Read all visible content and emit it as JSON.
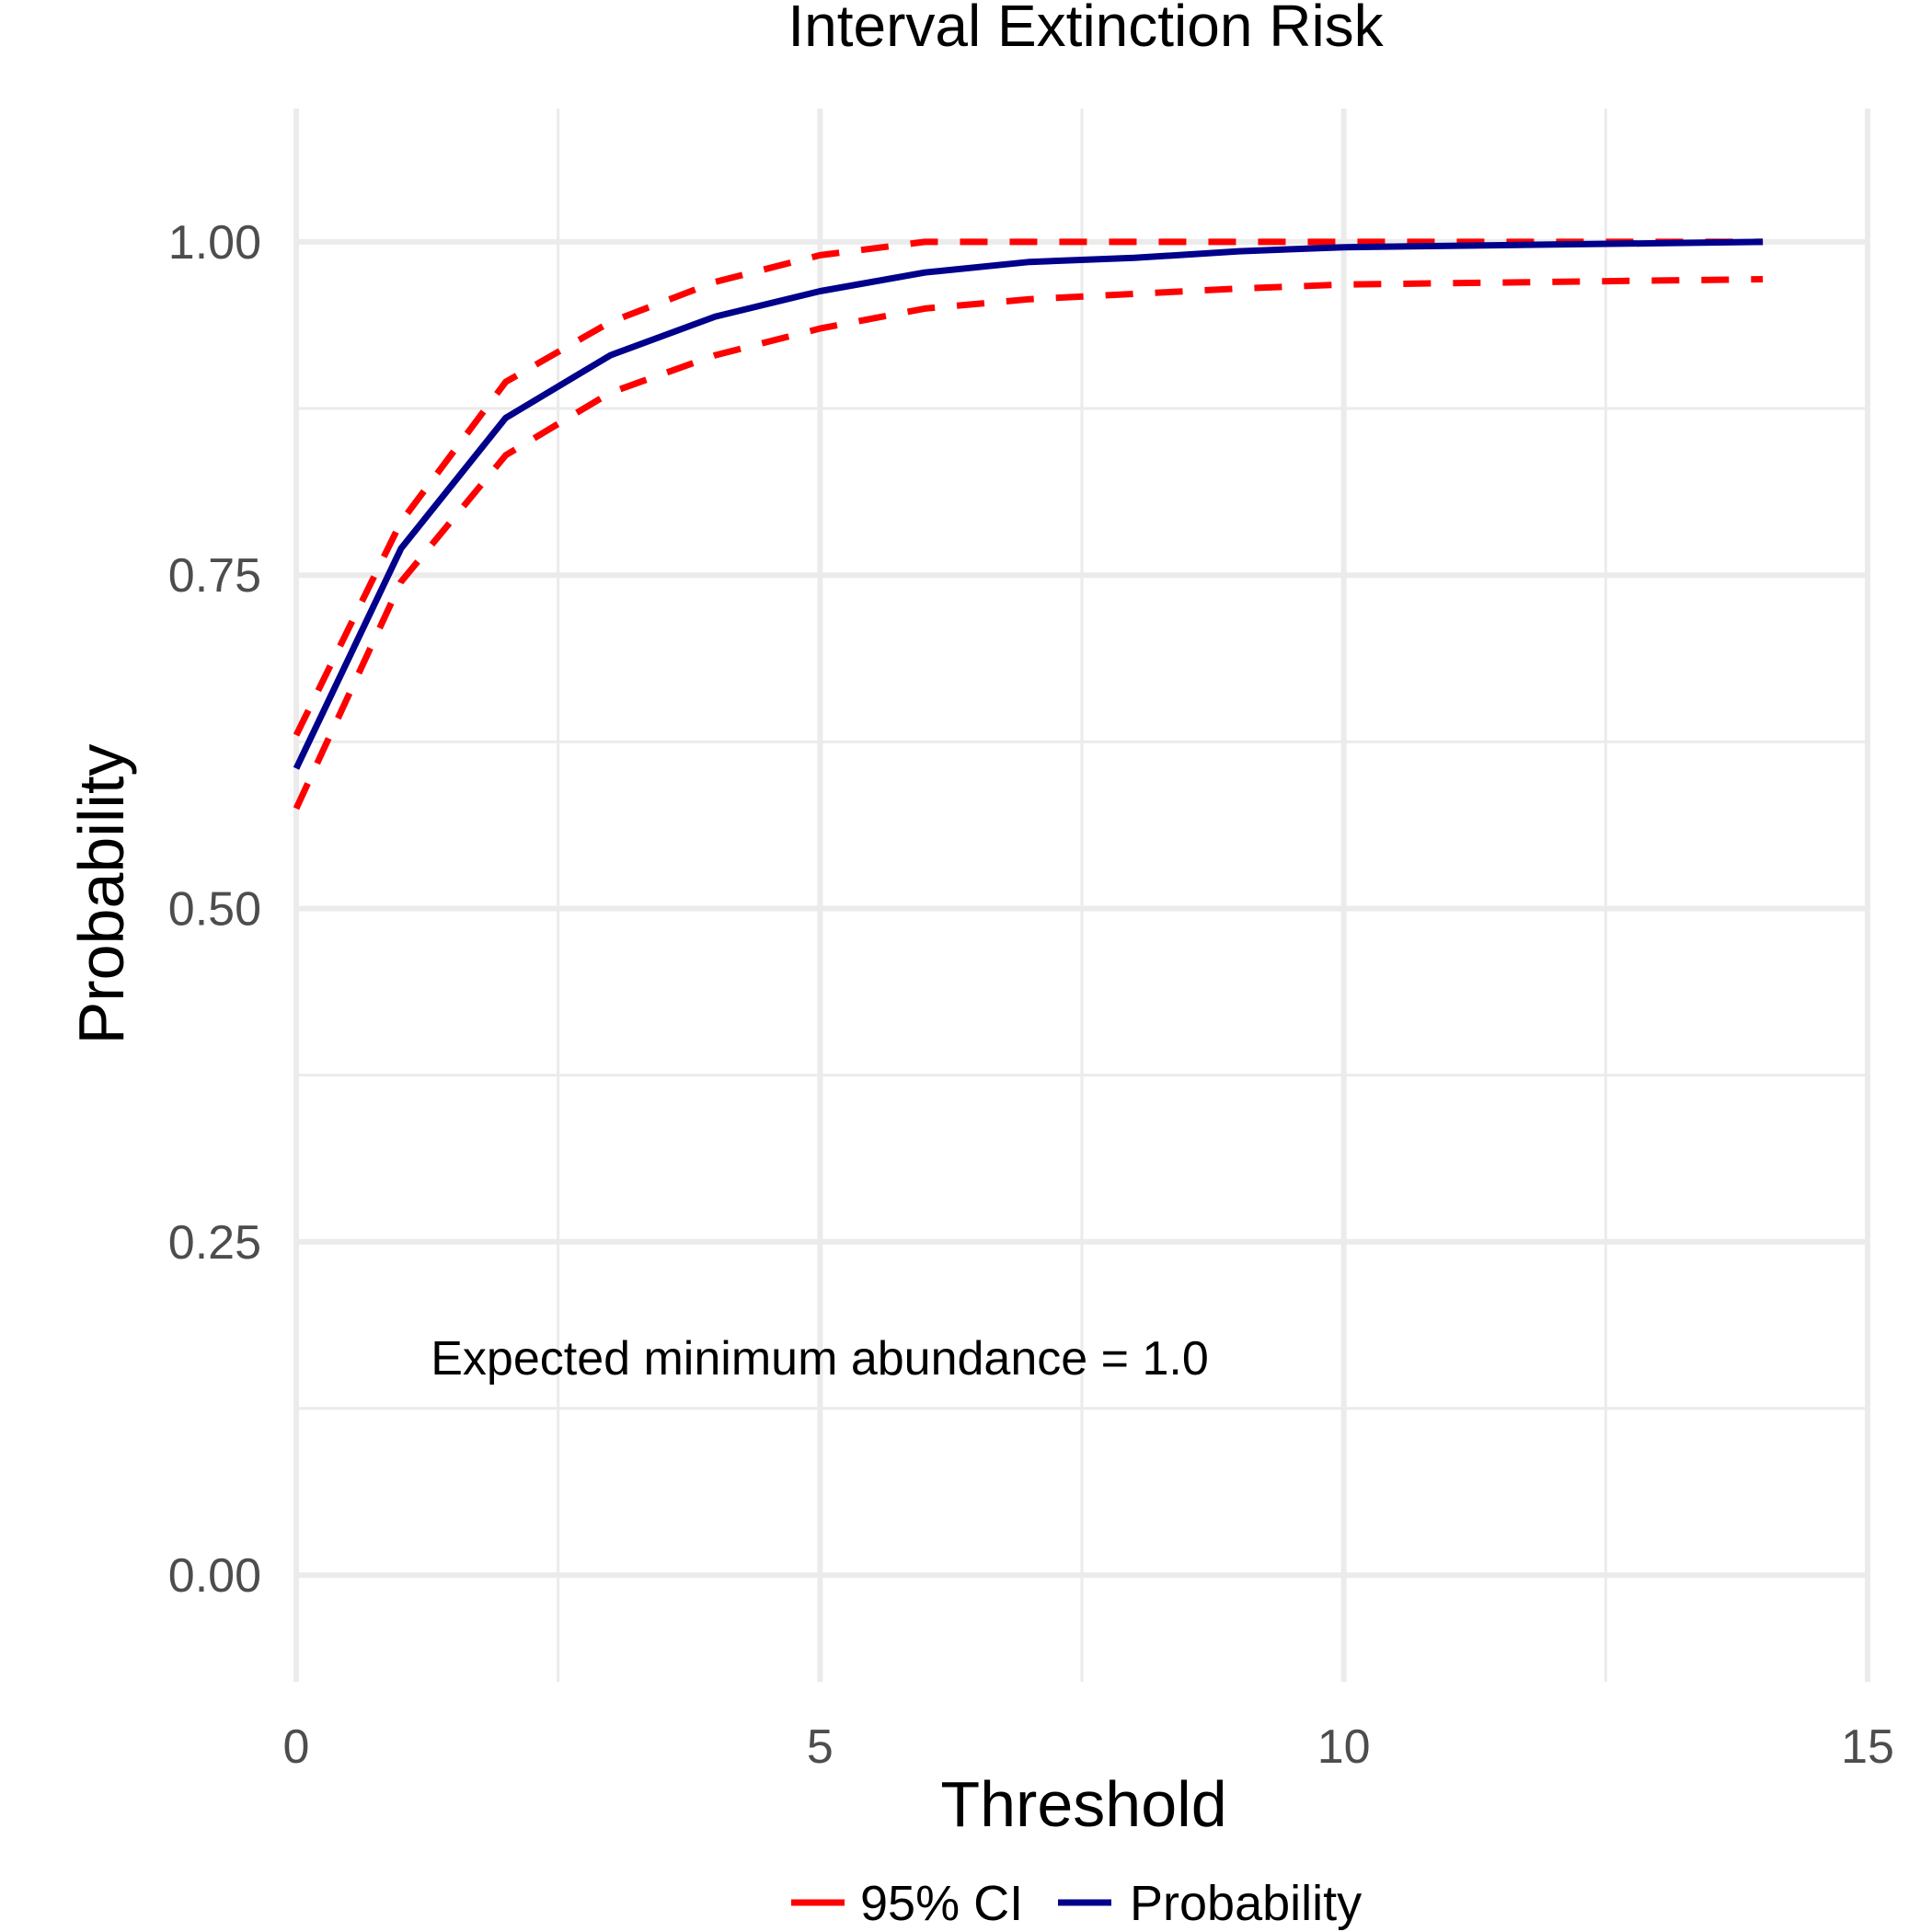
{
  "chart_data": {
    "type": "line",
    "title": "Interval Extinction Risk",
    "xlabel": "Threshold",
    "ylabel": "Probability",
    "xlim": [
      0,
      15
    ],
    "ylim": [
      -0.08,
      1.1
    ],
    "x_ticks": [
      0,
      5,
      10,
      15
    ],
    "x_tick_labels": [
      "0",
      "5",
      "10",
      "15"
    ],
    "x_minor_ticks": [
      2.5,
      7.5,
      12.5
    ],
    "y_ticks": [
      0,
      0.25,
      0.5,
      0.75,
      1
    ],
    "y_tick_labels": [
      "0.00",
      "0.25",
      "0.50",
      "0.75",
      "1.00"
    ],
    "y_minor_ticks": [
      0.125,
      0.375,
      0.625,
      0.875
    ],
    "grid": true,
    "legend_position": "bottom",
    "annotation": "Expected minimum abundance = 1.0",
    "annotation_position": {
      "x": 5,
      "y": 0.15
    },
    "series": [
      {
        "name": "95% CI",
        "role": "upper",
        "color": "#ff0000",
        "dash": "dashed",
        "x": [
          0,
          1,
          2,
          3,
          4,
          5,
          6,
          7,
          8,
          9,
          10,
          11,
          12,
          13,
          14
        ],
        "y": [
          0.63,
          0.79,
          0.895,
          0.94,
          0.97,
          0.99,
          1.0,
          1.0,
          1.0,
          1.0,
          1.0,
          1.0,
          1.0,
          1.0,
          1.0
        ]
      },
      {
        "name": "95% CI",
        "role": "lower",
        "color": "#ff0000",
        "dash": "dashed",
        "x": [
          0,
          1,
          2,
          3,
          4,
          5,
          6,
          7,
          8,
          9,
          10,
          11,
          12,
          13,
          14
        ],
        "y": [
          0.575,
          0.745,
          0.84,
          0.887,
          0.915,
          0.935,
          0.95,
          0.957,
          0.961,
          0.965,
          0.968,
          0.969,
          0.97,
          0.971,
          0.972
        ]
      },
      {
        "name": "Probability",
        "role": "estimate",
        "color": "#00008b",
        "dash": "solid",
        "x": [
          0,
          1,
          2,
          3,
          4,
          5,
          6,
          7,
          8,
          9,
          10,
          11,
          12,
          13,
          14
        ],
        "y": [
          0.605,
          0.77,
          0.868,
          0.915,
          0.944,
          0.963,
          0.977,
          0.985,
          0.988,
          0.993,
          0.996,
          0.997,
          0.998,
          0.999,
          1.0
        ]
      }
    ],
    "legend": [
      {
        "label": "95% CI",
        "color": "#ff0000"
      },
      {
        "label": "Probability",
        "color": "#00008b"
      }
    ]
  }
}
